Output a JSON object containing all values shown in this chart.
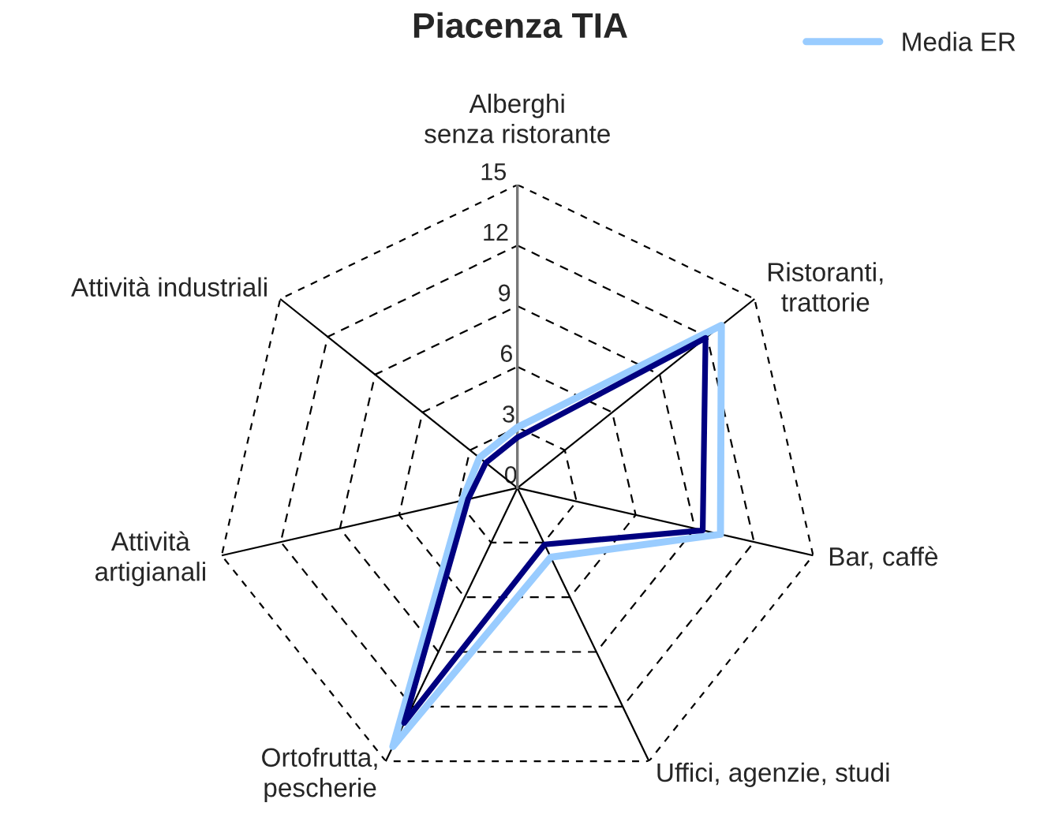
{
  "chart_data": {
    "type": "radar",
    "title": "Piacenza TIA",
    "categories": [
      "Alberghi\nsenza ristorante",
      "Ristoranti,\ntrattorie",
      "Bar, caffè",
      "Uffici, agenzie, studi",
      "Ortofrutta,\npescherie",
      "Attività\nartigianali",
      "Attività industriali"
    ],
    "series": [
      {
        "color": "#000080",
        "values": [
          2.5,
          11.9,
          9.4,
          3.1,
          12.9,
          2.5,
          2.0
        ]
      },
      {
        "name": "Media ER",
        "color": "#99ccff",
        "values": [
          3.0,
          12.9,
          10.3,
          3.8,
          14.2,
          2.8,
          2.4
        ]
      }
    ],
    "ylim": [
      0,
      15
    ],
    "yticks": [
      0,
      3,
      6,
      9,
      12,
      15
    ],
    "grid": true,
    "legend": "top right",
    "marker": "none",
    "line_style": "solid"
  }
}
